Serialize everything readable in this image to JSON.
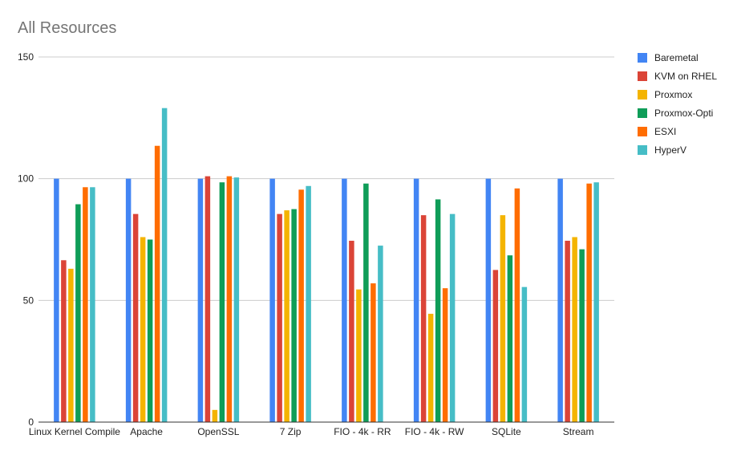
{
  "chart_data": {
    "type": "bar",
    "title": "All Resources",
    "xlabel": "",
    "ylabel": "",
    "ylim": [
      0,
      150
    ],
    "yticks": [
      0,
      50,
      100,
      150
    ],
    "grid": true,
    "legend_position": "right",
    "categories": [
      "Linux Kernel Compile",
      "Apache",
      "OpenSSL",
      "7 Zip",
      "FIO - 4k - RR",
      "FIO - 4k - RW",
      "SQLite",
      "Stream"
    ],
    "series": [
      {
        "name": "Baremetal",
        "color": "#4285f4",
        "values": [
          100,
          100,
          100,
          100,
          100,
          100,
          100,
          100
        ]
      },
      {
        "name": "KVM on RHEL",
        "color": "#db4437",
        "values": [
          66.5,
          85.5,
          101,
          85.5,
          74.5,
          85,
          62.5,
          74.5
        ]
      },
      {
        "name": "Proxmox",
        "color": "#f4b400",
        "values": [
          63,
          76,
          5,
          87,
          54.5,
          44.5,
          85,
          76
        ]
      },
      {
        "name": "Proxmox-Opti",
        "color": "#0f9d58",
        "values": [
          89.5,
          75,
          98.5,
          87.5,
          98,
          91.5,
          68.5,
          71
        ]
      },
      {
        "name": "ESXI",
        "color": "#ff6d01",
        "values": [
          96.5,
          113.5,
          101,
          95.5,
          57,
          55,
          96,
          98
        ]
      },
      {
        "name": "HyperV",
        "color": "#46bdc6",
        "values": [
          96.5,
          129,
          100.5,
          97,
          72.5,
          85.5,
          55.5,
          98.5
        ]
      }
    ]
  }
}
